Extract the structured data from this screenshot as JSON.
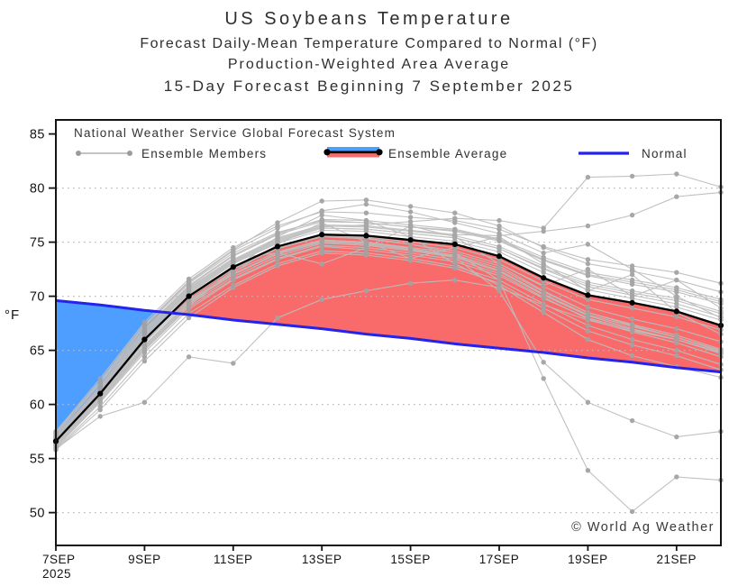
{
  "chart_data": {
    "type": "line",
    "title": "US Soybeans Temperature",
    "subtitle1": "Forecast Daily-Mean Temperature Compared to Normal (°F)",
    "subtitle2": "Production-Weighted Area Average",
    "subtitle3": "15-Day Forecast Beginning 7 September 2025",
    "ylabel": "°F",
    "watermark": "© World Ag Weather",
    "ylim": [
      47,
      86.3
    ],
    "grid": "dotted-horizontal",
    "legend_position": "top-left-inside",
    "y_ticks": [
      50,
      55,
      60,
      65,
      70,
      75,
      80,
      85
    ],
    "gridline_ticks": [
      50,
      55,
      60,
      65,
      70,
      75,
      80
    ],
    "x": [
      "7SEP",
      "8SEP",
      "9SEP",
      "10SEP",
      "11SEP",
      "12SEP",
      "13SEP",
      "14SEP",
      "15SEP",
      "16SEP",
      "17SEP",
      "18SEP",
      "19SEP",
      "20SEP",
      "21SEP",
      "22SEP"
    ],
    "x_tick_labels": [
      {
        "day": 0,
        "label": "7SEP",
        "sub": "2025"
      },
      {
        "day": 2,
        "label": "9SEP"
      },
      {
        "day": 4,
        "label": "11SEP"
      },
      {
        "day": 6,
        "label": "13SEP"
      },
      {
        "day": 8,
        "label": "15SEP"
      },
      {
        "day": 10,
        "label": "17SEP"
      },
      {
        "day": 12,
        "label": "19SEP"
      },
      {
        "day": 14,
        "label": "21SEP"
      }
    ],
    "legend": {
      "header": "National Weather Service Global Forecast System",
      "items": [
        {
          "label": "Ensemble Members"
        },
        {
          "label": "Ensemble Average"
        },
        {
          "label": "Normal"
        }
      ]
    },
    "fills": {
      "above_normal_color": "#f96b6b",
      "below_normal_color": "#4d9eff"
    },
    "series": {
      "normal": {
        "name": "Normal",
        "color": "#2323ec",
        "values": [
          69.6,
          69.2,
          68.7,
          68.3,
          67.8,
          67.4,
          67.0,
          66.5,
          66.1,
          65.6,
          65.2,
          64.8,
          64.3,
          63.9,
          63.4,
          63.0
        ]
      },
      "ensemble_average": {
        "name": "Ensemble Average",
        "color": "#000000",
        "values": [
          56.6,
          61.0,
          66.0,
          70.0,
          72.7,
          74.6,
          75.7,
          75.6,
          75.2,
          74.8,
          73.7,
          71.7,
          70.1,
          69.4,
          68.6,
          67.3
        ]
      },
      "ensemble_members": {
        "name": "Ensemble Members",
        "color": "#bdbdbd",
        "dot_color": "#a3a3a3",
        "members": [
          [
            56.0,
            60.2,
            64.8,
            68.8,
            71.5,
            73.4,
            74.6,
            74.3,
            73.8,
            73.2,
            71.9,
            69.8,
            68.0,
            66.9,
            66.0,
            64.8
          ],
          [
            57.3,
            62.0,
            67.2,
            71.2,
            74.0,
            75.9,
            77.0,
            76.8,
            76.4,
            76.1,
            75.2,
            73.4,
            72.0,
            71.3,
            70.6,
            69.5
          ],
          [
            56.3,
            60.8,
            65.5,
            69.5,
            72.0,
            74.0,
            75.2,
            75.0,
            74.5,
            74.0,
            72.8,
            70.5,
            68.5,
            67.3,
            66.2,
            65.0
          ],
          [
            56.9,
            61.5,
            66.6,
            70.6,
            73.3,
            75.3,
            76.5,
            76.4,
            76.0,
            75.6,
            74.6,
            72.8,
            71.3,
            70.5,
            69.8,
            68.6
          ],
          [
            55.8,
            59.5,
            64.0,
            68.0,
            70.8,
            72.8,
            74.0,
            73.8,
            73.3,
            72.6,
            71.2,
            68.9,
            66.8,
            65.5,
            64.5,
            63.2
          ],
          [
            57.5,
            62.4,
            67.6,
            71.6,
            74.5,
            76.5,
            77.8,
            77.7,
            77.3,
            77.0,
            76.2,
            74.6,
            73.4,
            72.8,
            72.2,
            71.2
          ],
          [
            56.6,
            61.0,
            66.0,
            70.2,
            73.0,
            75.0,
            76.3,
            76.2,
            75.8,
            75.4,
            74.4,
            72.5,
            70.9,
            70.1,
            69.3,
            68.1
          ],
          [
            56.6,
            61.0,
            65.8,
            69.6,
            72.1,
            73.9,
            75.0,
            74.8,
            74.3,
            73.7,
            72.4,
            70.2,
            68.3,
            67.2,
            66.2,
            64.9
          ],
          [
            56.2,
            60.5,
            65.2,
            69.2,
            71.8,
            73.7,
            74.9,
            74.7,
            74.2,
            73.6,
            72.3,
            70.1,
            68.2,
            67.0,
            66.0,
            64.7
          ],
          [
            57.0,
            61.7,
            66.9,
            70.9,
            73.7,
            75.7,
            76.9,
            76.8,
            76.4,
            76.0,
            75.1,
            73.3,
            71.9,
            71.1,
            70.4,
            69.3
          ],
          [
            56.4,
            60.7,
            65.4,
            69.4,
            72.0,
            73.9,
            75.1,
            74.9,
            74.4,
            73.8,
            72.6,
            70.4,
            68.5,
            67.4,
            66.4,
            65.1
          ],
          [
            56.8,
            61.3,
            66.4,
            70.4,
            73.1,
            75.1,
            76.3,
            76.2,
            75.8,
            75.4,
            74.4,
            72.6,
            71.1,
            70.3,
            69.6,
            68.4
          ],
          [
            55.9,
            58.9,
            60.2,
            64.4,
            63.8,
            68.0,
            69.7,
            70.5,
            71.2,
            71.5,
            70.8,
            69.2,
            67.8,
            66.8,
            66.0,
            64.8
          ],
          [
            56.7,
            61.2,
            66.2,
            70.1,
            72.8,
            74.6,
            75.6,
            75.4,
            74.8,
            74.0,
            71.5,
            62.4,
            53.9,
            50.1,
            53.3,
            53.0
          ],
          [
            56.4,
            60.8,
            65.7,
            69.7,
            72.3,
            74.1,
            75.2,
            75.0,
            74.4,
            73.6,
            70.5,
            63.9,
            60.2,
            58.5,
            57.0,
            57.5
          ],
          [
            56.9,
            61.4,
            66.5,
            70.5,
            73.2,
            75.2,
            76.4,
            76.6,
            76.9,
            77.2,
            77.0,
            76.3,
            81.0,
            81.1,
            81.3,
            80.1
          ],
          [
            57.1,
            61.6,
            66.7,
            70.7,
            73.4,
            75.4,
            76.6,
            76.5,
            76.1,
            75.7,
            75.6,
            76.0,
            76.5,
            77.5,
            79.2,
            79.6
          ],
          [
            56.1,
            60.3,
            65.0,
            69.0,
            71.6,
            73.5,
            74.7,
            74.5,
            74.0,
            73.4,
            72.1,
            69.9,
            67.9,
            66.7,
            65.7,
            64.4
          ],
          [
            57.2,
            61.9,
            67.0,
            71.0,
            73.8,
            75.8,
            77.1,
            77.0,
            76.6,
            76.2,
            75.3,
            73.6,
            72.2,
            71.5,
            70.8,
            69.7
          ],
          [
            56.5,
            60.9,
            65.9,
            69.9,
            72.5,
            74.4,
            75.5,
            75.3,
            74.8,
            74.2,
            73.0,
            70.9,
            69.0,
            67.9,
            67.0,
            65.8
          ],
          [
            56.8,
            61.2,
            66.3,
            70.3,
            73.0,
            74.9,
            76.1,
            76.0,
            75.5,
            75.1,
            74.1,
            72.2,
            70.6,
            69.8,
            69.0,
            67.8
          ],
          [
            57.4,
            62.2,
            67.4,
            71.4,
            74.3,
            76.8,
            78.8,
            78.9,
            78.3,
            77.7,
            76.5,
            74.5,
            73.0,
            72.3,
            71.5,
            70.4
          ],
          [
            55.9,
            59.8,
            64.4,
            68.4,
            71.0,
            73.0,
            74.2,
            74.0,
            73.5,
            72.8,
            71.5,
            69.3,
            67.3,
            66.0,
            65.0,
            63.7
          ],
          [
            56.7,
            61.1,
            66.1,
            70.0,
            72.6,
            74.5,
            75.6,
            75.5,
            75.0,
            74.5,
            73.4,
            71.4,
            69.7,
            68.9,
            68.1,
            66.9
          ],
          [
            56.3,
            60.6,
            65.3,
            69.3,
            72.2,
            74.8,
            76.8,
            75.0,
            73.5,
            74.5,
            75.5,
            73.0,
            70.5,
            72.0,
            68.5,
            66.5
          ],
          [
            57.0,
            61.6,
            66.8,
            70.8,
            73.5,
            74.0,
            73.0,
            74.5,
            76.5,
            75.5,
            73.0,
            71.0,
            72.5,
            70.0,
            71.5,
            68.9
          ],
          [
            57.2,
            62.1,
            67.3,
            71.3,
            74.2,
            76.3,
            77.9,
            78.5,
            77.8,
            76.8,
            75.8,
            74.0,
            74.8,
            72.5,
            70.0,
            68.0
          ],
          [
            56.2,
            60.4,
            65.1,
            69.1,
            72.4,
            75.5,
            77.5,
            77.0,
            75.5,
            73.0,
            71.0,
            68.5,
            66.0,
            64.5,
            63.5,
            62.5
          ]
        ]
      }
    }
  }
}
